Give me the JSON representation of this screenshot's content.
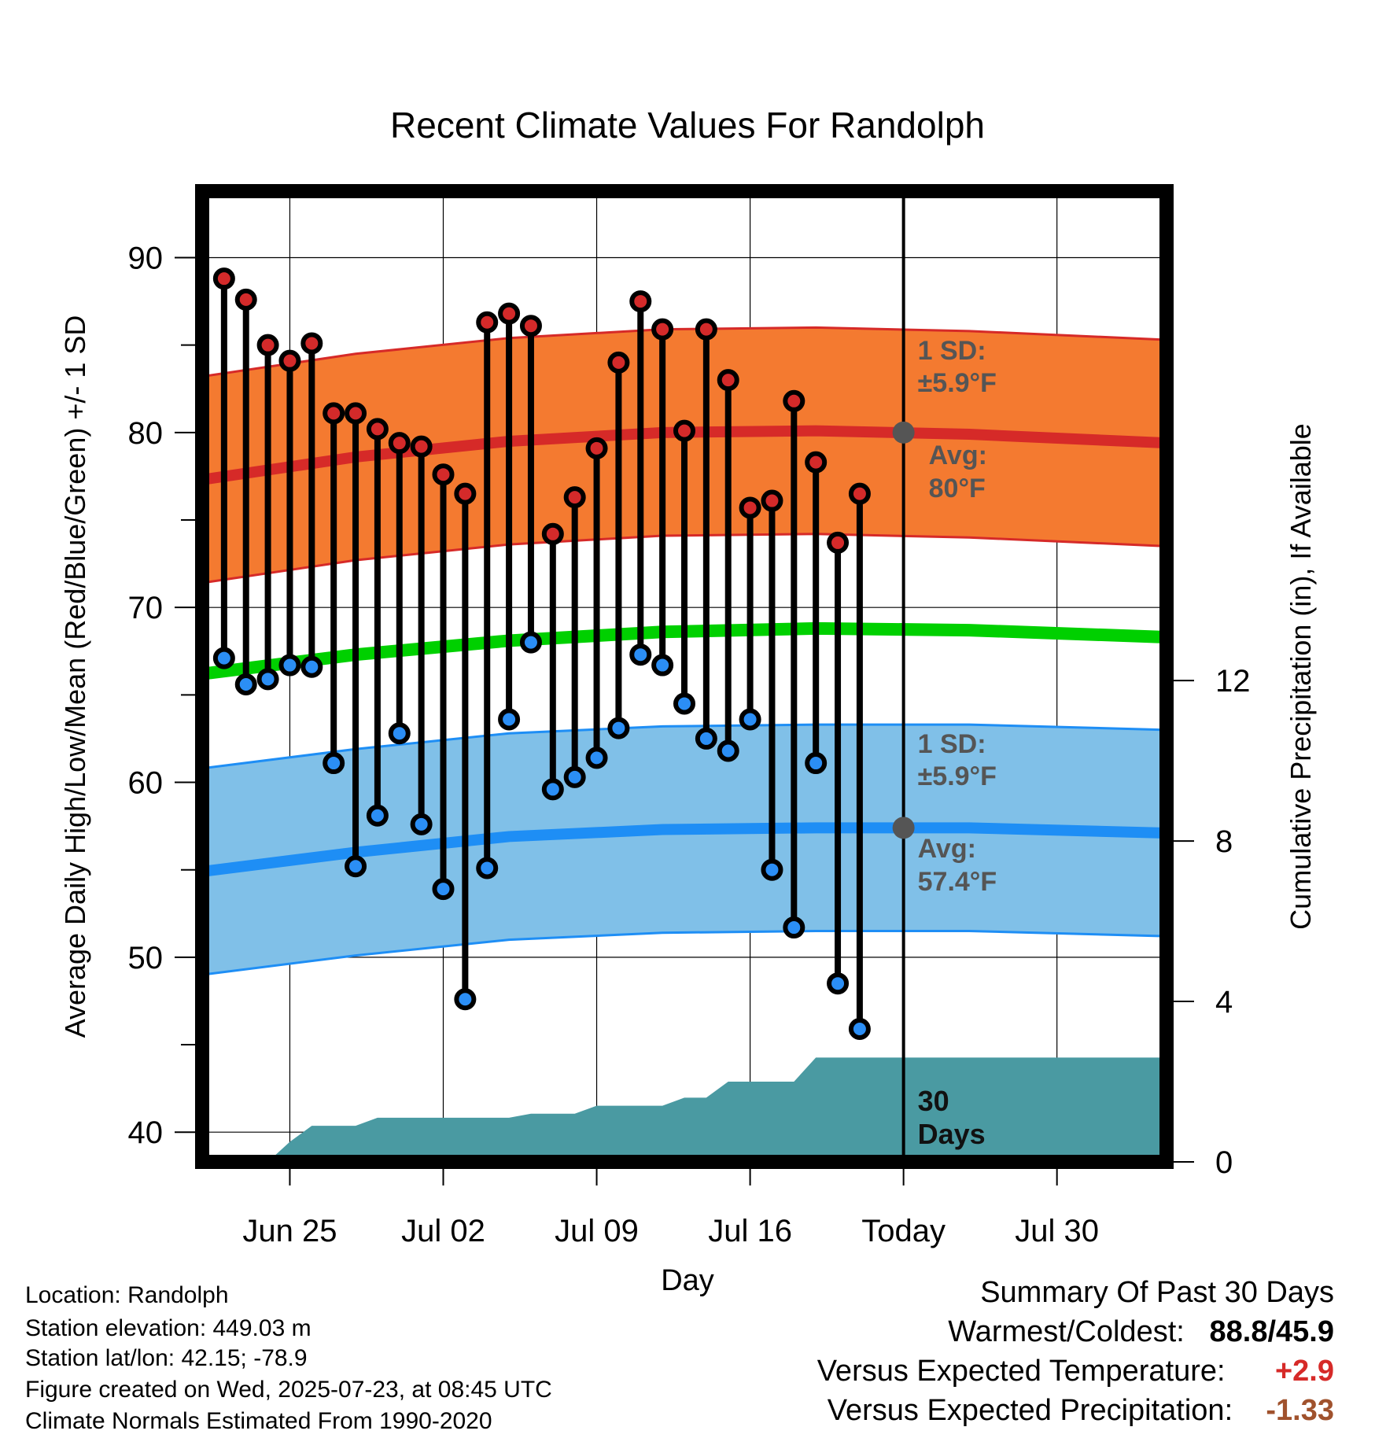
{
  "chart_data": {
    "type": "line",
    "title": "Recent Climate Values For Randolph",
    "xlabel": "Day",
    "ylabel_left": "Average Daily High/Low/Mean (Red/Blue/Green) +/- 1 SD",
    "ylabel_right": "Cumulative Precipitation (in), If Available",
    "x_ticks": [
      "Jun 25",
      "Jul 02",
      "Jul 09",
      "Jul 16",
      "Today",
      "Jul 30"
    ],
    "x_range": [
      "2025-06-21",
      "2025-08-04"
    ],
    "today": "2025-07-23",
    "ylim_left": [
      38.3,
      93.8
    ],
    "yticks_left": [
      40,
      50,
      60,
      70,
      80,
      90
    ],
    "ylim_right": [
      0,
      24.2
    ],
    "yticks_right": [
      0,
      4,
      8,
      12
    ],
    "grid": true,
    "daily": [
      {
        "date": "2025-06-22",
        "high": 88.8,
        "low": 67.1
      },
      {
        "date": "2025-06-23",
        "high": 87.6,
        "low": 65.6
      },
      {
        "date": "2025-06-24",
        "high": 85.0,
        "low": 65.9
      },
      {
        "date": "2025-06-25",
        "high": 84.1,
        "low": 66.7
      },
      {
        "date": "2025-06-26",
        "high": 85.1,
        "low": 66.6
      },
      {
        "date": "2025-06-27",
        "high": 81.1,
        "low": 61.1
      },
      {
        "date": "2025-06-28",
        "high": 81.1,
        "low": 55.2
      },
      {
        "date": "2025-06-29",
        "high": 80.2,
        "low": 58.1
      },
      {
        "date": "2025-06-30",
        "high": 79.4,
        "low": 62.8
      },
      {
        "date": "2025-07-01",
        "high": 79.2,
        "low": 57.6
      },
      {
        "date": "2025-07-02",
        "high": 77.6,
        "low": 53.9
      },
      {
        "date": "2025-07-03",
        "high": 76.5,
        "low": 47.6
      },
      {
        "date": "2025-07-04",
        "high": 86.3,
        "low": 55.1
      },
      {
        "date": "2025-07-05",
        "high": 86.8,
        "low": 63.6
      },
      {
        "date": "2025-07-06",
        "high": 86.1,
        "low": 68.0
      },
      {
        "date": "2025-07-07",
        "high": 74.2,
        "low": 59.6
      },
      {
        "date": "2025-07-08",
        "high": 76.3,
        "low": 60.3
      },
      {
        "date": "2025-07-09",
        "high": 79.1,
        "low": 61.4
      },
      {
        "date": "2025-07-10",
        "high": 84.0,
        "low": 63.1
      },
      {
        "date": "2025-07-11",
        "high": 87.5,
        "low": 67.3
      },
      {
        "date": "2025-07-12",
        "high": 85.9,
        "low": 66.7
      },
      {
        "date": "2025-07-13",
        "high": 80.1,
        "low": 64.5
      },
      {
        "date": "2025-07-14",
        "high": 85.9,
        "low": 62.5
      },
      {
        "date": "2025-07-15",
        "high": 83.0,
        "low": 61.8
      },
      {
        "date": "2025-07-16",
        "high": 75.7,
        "low": 63.6
      },
      {
        "date": "2025-07-17",
        "high": 76.1,
        "low": 55.0
      },
      {
        "date": "2025-07-18",
        "high": 81.8,
        "low": 51.7
      },
      {
        "date": "2025-07-19",
        "high": 78.3,
        "low": 61.1
      },
      {
        "date": "2025-07-20",
        "high": 73.7,
        "low": 48.5
      },
      {
        "date": "2025-07-21",
        "high": 76.5,
        "low": 45.9
      }
    ],
    "normals": [
      {
        "date": "2025-06-21",
        "high": 77.3,
        "low": 54.9,
        "mean": 66.2
      },
      {
        "date": "2025-06-28",
        "high": 78.6,
        "low": 56.0,
        "mean": 67.3
      },
      {
        "date": "2025-07-05",
        "high": 79.5,
        "low": 56.9,
        "mean": 68.1
      },
      {
        "date": "2025-07-12",
        "high": 80.0,
        "low": 57.3,
        "mean": 68.6
      },
      {
        "date": "2025-07-19",
        "high": 80.1,
        "low": 57.4,
        "mean": 68.8
      },
      {
        "date": "2025-07-26",
        "high": 79.9,
        "low": 57.4,
        "mean": 68.7
      },
      {
        "date": "2025-08-04",
        "high": 79.4,
        "low": 57.1,
        "mean": 68.3
      }
    ],
    "sd": 5.9,
    "precip_cumulative": [
      {
        "date": "2025-06-21",
        "value": 0.0
      },
      {
        "date": "2025-06-24",
        "value": 0.0
      },
      {
        "date": "2025-06-25",
        "value": 0.5
      },
      {
        "date": "2025-06-26",
        "value": 0.9
      },
      {
        "date": "2025-06-28",
        "value": 0.9
      },
      {
        "date": "2025-06-29",
        "value": 1.1
      },
      {
        "date": "2025-07-05",
        "value": 1.1
      },
      {
        "date": "2025-07-06",
        "value": 1.2
      },
      {
        "date": "2025-07-08",
        "value": 1.2
      },
      {
        "date": "2025-07-09",
        "value": 1.4
      },
      {
        "date": "2025-07-12",
        "value": 1.4
      },
      {
        "date": "2025-07-13",
        "value": 1.6
      },
      {
        "date": "2025-07-14",
        "value": 1.6
      },
      {
        "date": "2025-07-15",
        "value": 2.0
      },
      {
        "date": "2025-07-18",
        "value": 2.0
      },
      {
        "date": "2025-07-19",
        "value": 2.6
      },
      {
        "date": "2025-08-04",
        "value": 2.6
      }
    ],
    "annotations": {
      "high_sd_label_1": "1 SD:",
      "high_sd_label_2": "±5.9°F",
      "high_avg_label_1": "Avg:",
      "high_avg_label_2": "80°F",
      "low_sd_label_1": "1 SD:",
      "low_sd_label_2": "±5.9°F",
      "low_avg_label_1": "Avg:",
      "low_avg_label_2": "57.4°F",
      "precip_label_1": "30",
      "precip_label_2": "Days"
    }
  },
  "info": {
    "location": "Location: Randolph",
    "elevation": "Station elevation: 449.03 m",
    "latlon": "Station lat/lon: 42.15; -78.9",
    "created": "Figure created on Wed, 2025-07-23, at 08:45 UTC",
    "normals": "Climate Normals Estimated From 1990-2020"
  },
  "summary": {
    "title": "Summary Of Past 30 Days",
    "warmest_label": "Warmest/Coldest:",
    "warmest_value": "88.8/45.9",
    "temp_label": "Versus Expected Temperature:",
    "temp_value": "+2.9",
    "precip_label": "Versus Expected Precipitation:",
    "precip_value": "-1.33"
  },
  "colors": {
    "high_band": "#f47a30",
    "high_line": "#d62a28",
    "low_band": "#80c0e8",
    "low_line": "#1e8ef5",
    "mean_line": "#00d000",
    "precip_fill": "#4a9aa2",
    "high_dot": "#d42a2a",
    "low_dot": "#2b8ef5",
    "label_gray": "#555555",
    "temp_positive": "#d62a28",
    "precip_negative": "#a0522d"
  }
}
